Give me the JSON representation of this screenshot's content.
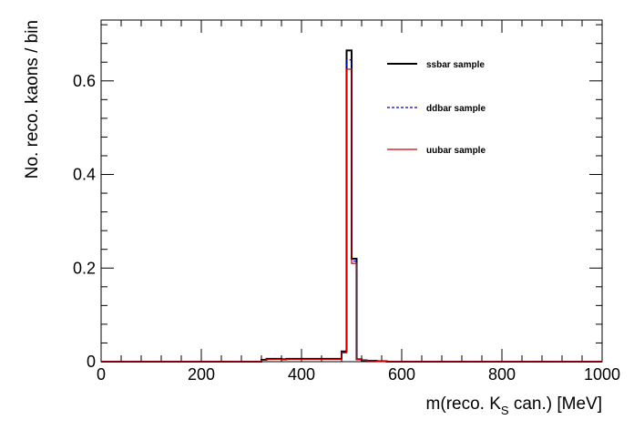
{
  "chart_data": {
    "type": "histogram",
    "xlabel": "m(reco. K",
    "xlabel_sub": "S",
    "xlabel_rest": " can.) [MeV]",
    "ylabel": "No. reco. kaons / bin",
    "xlim": [
      0,
      1000
    ],
    "ylim": [
      0,
      0.73
    ],
    "x_ticks": [
      0,
      200,
      400,
      600,
      800,
      1000
    ],
    "x_tick_labels": [
      "0",
      "200",
      "400",
      "600",
      "800",
      "1000"
    ],
    "y_ticks": [
      0,
      0.2,
      0.4,
      0.6
    ],
    "y_tick_labels": [
      "0",
      "0.2",
      "0.4",
      "0.6"
    ],
    "bin_width": 10,
    "bin_edges_start": 0,
    "grid": false,
    "legend_position": "top-right",
    "series": [
      {
        "name": "ssbar sample",
        "color": "#000000",
        "style": "solid",
        "values": [
          0,
          0,
          0,
          0,
          0,
          0,
          0,
          0,
          0,
          0,
          0,
          0,
          0,
          0,
          0,
          0,
          0,
          0,
          0,
          0,
          0,
          0,
          0,
          0,
          0,
          0,
          0,
          0,
          0,
          0,
          0,
          0,
          0.004,
          0.006,
          0.006,
          0.006,
          0.005,
          0.006,
          0.006,
          0.006,
          0.006,
          0.006,
          0.006,
          0.006,
          0.006,
          0.006,
          0.006,
          0.006,
          0.022,
          0.665,
          0.22,
          0.005,
          0.003,
          0.002,
          0.002,
          0.001,
          0.001,
          0,
          0,
          0,
          0,
          0,
          0,
          0,
          0,
          0,
          0,
          0,
          0,
          0,
          0,
          0,
          0,
          0,
          0,
          0,
          0,
          0,
          0,
          0,
          0,
          0,
          0,
          0,
          0,
          0,
          0,
          0,
          0,
          0,
          0,
          0,
          0,
          0,
          0,
          0,
          0,
          0,
          0,
          0
        ]
      },
      {
        "name": "ddbar sample",
        "color": "#0000cc",
        "style": "dashed",
        "values": [
          0,
          0,
          0,
          0,
          0,
          0,
          0,
          0,
          0,
          0,
          0,
          0,
          0,
          0,
          0,
          0,
          0,
          0,
          0,
          0,
          0,
          0,
          0,
          0,
          0,
          0,
          0,
          0,
          0,
          0,
          0,
          0,
          0.003,
          0.005,
          0.005,
          0.005,
          0.004,
          0.005,
          0.005,
          0.005,
          0.005,
          0.005,
          0.005,
          0.005,
          0.005,
          0.005,
          0.005,
          0.005,
          0.02,
          0.645,
          0.215,
          0.005,
          0.003,
          0.002,
          0.002,
          0.001,
          0.001,
          0,
          0,
          0,
          0,
          0,
          0,
          0,
          0,
          0,
          0,
          0,
          0,
          0,
          0,
          0,
          0,
          0,
          0,
          0,
          0,
          0,
          0,
          0,
          0,
          0,
          0,
          0,
          0,
          0,
          0,
          0,
          0,
          0,
          0,
          0,
          0,
          0,
          0,
          0,
          0,
          0,
          0,
          0
        ]
      },
      {
        "name": "uubar sample",
        "color": "#cc0000",
        "style": "solid",
        "values": [
          0,
          0,
          0,
          0,
          0,
          0,
          0,
          0,
          0,
          0,
          0,
          0,
          0,
          0,
          0,
          0,
          0,
          0,
          0,
          0,
          0,
          0,
          0,
          0,
          0,
          0,
          0,
          0,
          0,
          0,
          0,
          0,
          0.003,
          0.005,
          0.005,
          0.005,
          0.004,
          0.005,
          0.005,
          0.005,
          0.005,
          0.005,
          0.005,
          0.005,
          0.005,
          0.005,
          0.005,
          0.005,
          0.019,
          0.625,
          0.21,
          0.005,
          0.003,
          0.002,
          0.002,
          0.001,
          0.001,
          0,
          0,
          0,
          0,
          0,
          0,
          0,
          0,
          0,
          0,
          0,
          0,
          0,
          0,
          0,
          0,
          0,
          0,
          0,
          0,
          0,
          0,
          0,
          0,
          0,
          0,
          0,
          0,
          0,
          0,
          0,
          0,
          0,
          0,
          0,
          0,
          0,
          0,
          0,
          0,
          0,
          0,
          0
        ]
      }
    ]
  }
}
